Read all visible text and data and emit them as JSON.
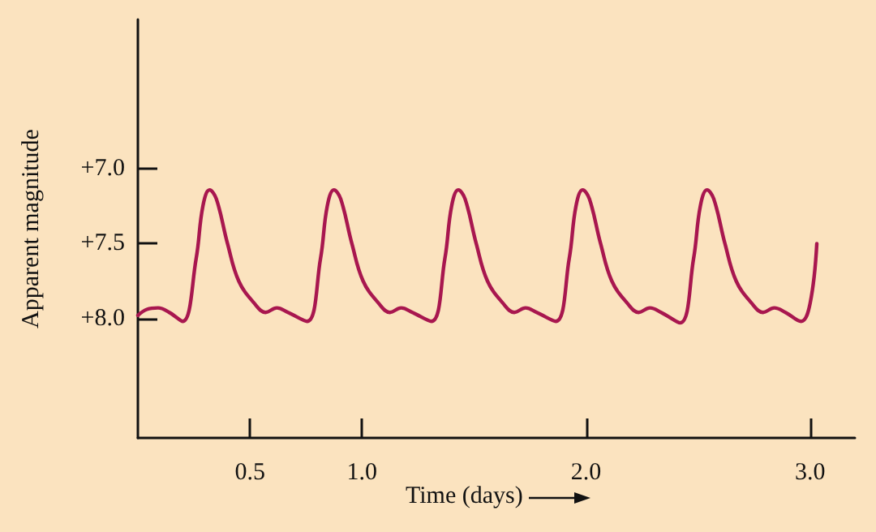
{
  "chart_data": {
    "type": "line",
    "xlabel": "Time (days)",
    "ylabel": "Apparent magnitude",
    "color": "#a8174f",
    "x": [
      0.0,
      0.04,
      0.09,
      0.14,
      0.2,
      0.26,
      0.29,
      0.32,
      0.35,
      0.4,
      0.45,
      0.52,
      0.57,
      0.62,
      0.67,
      0.755,
      0.815,
      0.845,
      0.875,
      0.905,
      0.955,
      1.005,
      1.075,
      1.125,
      1.175,
      1.225,
      1.31,
      1.37,
      1.4,
      1.43,
      1.46,
      1.51,
      1.56,
      1.63,
      1.68,
      1.73,
      1.78,
      1.865,
      1.925,
      1.955,
      1.985,
      2.015,
      2.065,
      2.115,
      2.185,
      2.235,
      2.285,
      2.335,
      2.42,
      2.48,
      2.51,
      2.54,
      2.57,
      2.62,
      2.67,
      2.74,
      2.79,
      2.84,
      2.89,
      2.96,
      3.0,
      3.03
    ],
    "values": [
      7.98,
      7.94,
      7.93,
      7.96,
      8.02,
      7.6,
      7.25,
      7.14,
      7.2,
      7.5,
      7.75,
      7.9,
      7.96,
      7.93,
      7.96,
      8.02,
      7.6,
      7.25,
      7.14,
      7.2,
      7.5,
      7.75,
      7.9,
      7.96,
      7.93,
      7.96,
      8.02,
      7.6,
      7.25,
      7.14,
      7.2,
      7.5,
      7.75,
      7.9,
      7.96,
      7.93,
      7.96,
      8.02,
      7.6,
      7.25,
      7.14,
      7.2,
      7.5,
      7.75,
      7.9,
      7.96,
      7.93,
      7.96,
      8.03,
      7.6,
      7.25,
      7.14,
      7.2,
      7.5,
      7.75,
      7.9,
      7.96,
      7.93,
      7.96,
      8.02,
      7.9,
      7.5
    ],
    "xlim": [
      0,
      3.2
    ],
    "ylim": [
      8.8,
      6.0
    ],
    "xticks": [
      {
        "value": 0.5,
        "label": "0.5"
      },
      {
        "value": 1,
        "label": "1.0"
      },
      {
        "value": 2,
        "label": "2.0"
      },
      {
        "value": 3,
        "label": "3.0"
      }
    ],
    "yticks": [
      {
        "value": 7,
        "label": "+7.0"
      },
      {
        "value": 7.5,
        "label": "+7.5"
      },
      {
        "value": 8,
        "label": "+8.0"
      }
    ]
  }
}
